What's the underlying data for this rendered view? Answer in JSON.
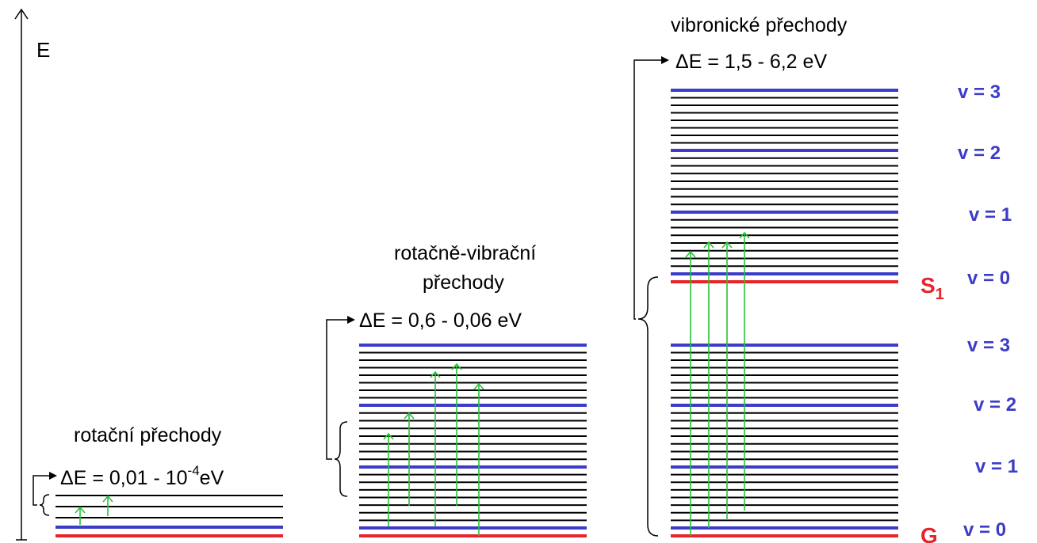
{
  "energy_axis_label": "E",
  "panels": [
    {
      "title_lines": [
        "rotační přechody"
      ],
      "delta_prefix": "ΔE = 0,01 - 10",
      "delta_exponent": "-4",
      "delta_unit": "eV"
    },
    {
      "title_lines": [
        "rotačně-vibrační",
        "přechody"
      ],
      "delta_text": "ΔE = 0,6 - 0,06 eV"
    },
    {
      "title_lines": [
        "vibronické přechody"
      ],
      "delta_text": "ΔE = 1,5 - 6,2 eV"
    }
  ],
  "states": {
    "excited_main": "S",
    "excited_sub": "1",
    "ground": "G"
  },
  "vibrational_labels": [
    "v = 3",
    "v = 2",
    "v = 1",
    "v = 0",
    "v = 3",
    "v = 2",
    "v = 1",
    "v = 0"
  ],
  "colors": {
    "ground_line": "#e8232b",
    "vibrational_line": "#3c3cc8",
    "rotational_line": "#000000",
    "transition_arrow": "#2bbf3a",
    "v_label": "#3c3cc8",
    "state_label": "#e8232b"
  }
}
